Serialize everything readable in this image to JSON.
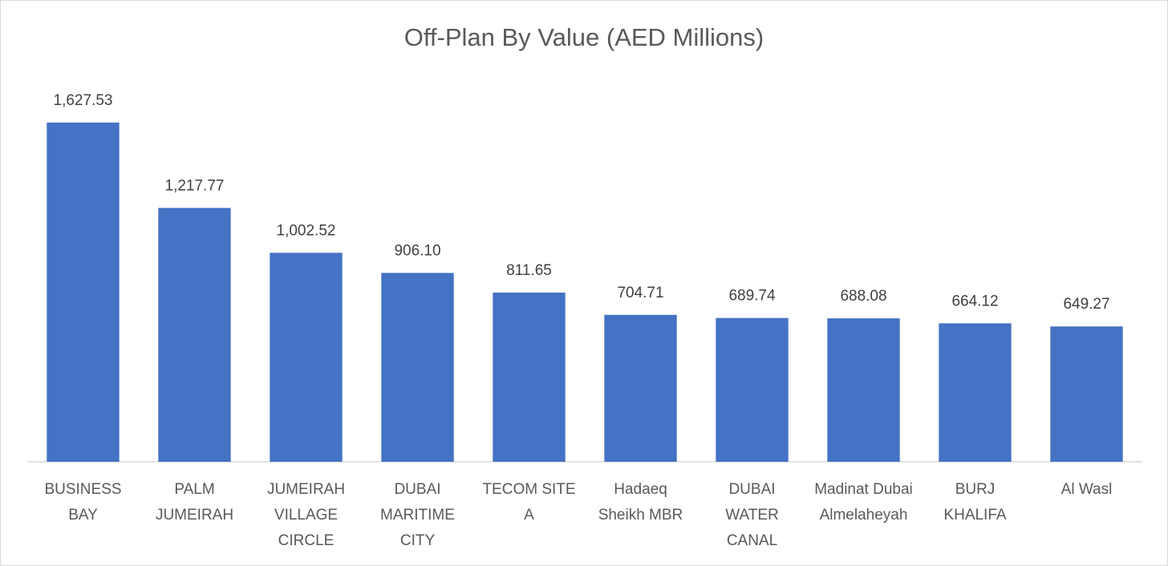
{
  "chart_data": {
    "type": "bar",
    "title": "Off-Plan By Value (AED Millions)",
    "categories": [
      "BUSINESS BAY",
      "PALM JUMEIRAH",
      "JUMEIRAH VILLAGE CIRCLE",
      "DUBAI MARITIME CITY",
      "TECOM SITE A",
      "Hadaeq Sheikh MBR",
      "DUBAI WATER CANAL",
      "Madinat Dubai Almelaheyah",
      "BURJ KHALIFA",
      "Al Wasl"
    ],
    "values": [
      1627.53,
      1217.77,
      1002.52,
      906.1,
      811.65,
      704.71,
      689.74,
      688.08,
      664.12,
      649.27
    ],
    "value_labels": [
      "1,627.53",
      "1,217.77",
      "1,002.52",
      "906.10",
      "811.65",
      "704.71",
      "689.74",
      "688.08",
      "664.12",
      "649.27"
    ],
    "color": "#4472c4",
    "ylim": [
      0,
      1800
    ]
  }
}
